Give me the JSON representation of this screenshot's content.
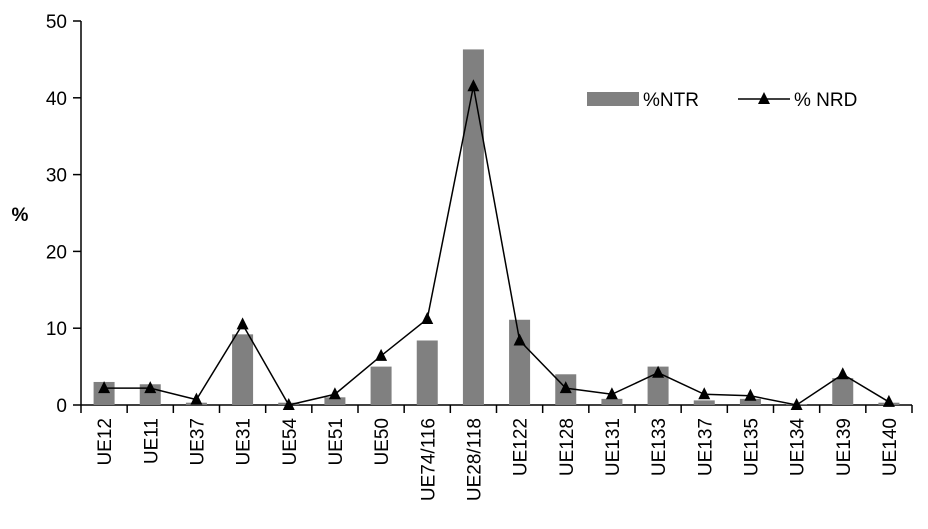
{
  "chart_data": {
    "type": "bar",
    "title": "",
    "xlabel": "",
    "ylabel": "%",
    "ylim": [
      0,
      50
    ],
    "yticks": [
      0,
      10,
      20,
      30,
      40,
      50
    ],
    "grid": false,
    "legend_position": "top-right",
    "categories": [
      "UE12",
      "UE11",
      "UE37",
      "UE31",
      "UE54",
      "UE51",
      "UE50",
      "UE74/116",
      "UE28/118",
      "UE122",
      "UE128",
      "UE131",
      "UE133",
      "UE137",
      "UE135",
      "UE134",
      "UE139",
      "UE140"
    ],
    "series": [
      {
        "name": "%NTR",
        "type": "bar",
        "color": "#808080",
        "values": [
          3.0,
          2.7,
          0.3,
          9.2,
          0.3,
          1.0,
          5.0,
          8.4,
          46.3,
          11.1,
          4.0,
          0.8,
          5.0,
          0.6,
          0.8,
          0.1,
          3.5,
          0.3
        ]
      },
      {
        "name": "% NRD",
        "type": "line",
        "marker": "triangle",
        "color": "#000000",
        "values": [
          2.2,
          2.2,
          0.7,
          10.5,
          0.0,
          1.4,
          6.4,
          11.2,
          41.5,
          8.4,
          2.2,
          1.4,
          4.2,
          1.4,
          1.2,
          0.0,
          4.0,
          0.4
        ]
      }
    ]
  }
}
